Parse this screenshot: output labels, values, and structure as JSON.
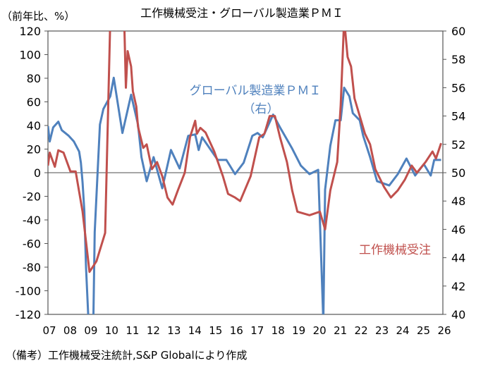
{
  "chart_data": {
    "type": "line",
    "title": "工作機械受注・グローバル製造業ＰＭＩ",
    "ylabel_left": "（前年比、%）",
    "footnote": "（備考）工作機械受注統計,S&P Globalにより作成",
    "x_ticks": [
      "07",
      "08",
      "09",
      "10",
      "11",
      "12",
      "13",
      "14",
      "15",
      "16",
      "17",
      "18",
      "19",
      "20",
      "21",
      "22",
      "23",
      "24",
      "25",
      "26"
    ],
    "xlim": [
      "2007-01",
      "2026-01"
    ],
    "y_left": {
      "range": [
        -120,
        120
      ],
      "ticks": [
        -120,
        -100,
        -80,
        -60,
        -40,
        -20,
        0,
        20,
        40,
        60,
        80,
        100,
        120
      ]
    },
    "y_right": {
      "range": [
        40,
        60
      ],
      "ticks": [
        40,
        42,
        44,
        46,
        48,
        50,
        52,
        54,
        56,
        58,
        60
      ]
    },
    "grid": false,
    "series": [
      {
        "name": "工作機械受注",
        "axis": "left",
        "color": "#C0504D",
        "label_lines": [
          "工作機械受注"
        ],
        "points": [
          [
            "2007-01",
            6
          ],
          [
            "2007-02",
            17
          ],
          [
            "2007-05",
            5
          ],
          [
            "2007-07",
            19
          ],
          [
            "2007-10",
            17
          ],
          [
            "2008-02",
            1
          ],
          [
            "2008-05",
            1
          ],
          [
            "2008-09",
            -33
          ],
          [
            "2009-01",
            -84
          ],
          [
            "2009-05",
            -75
          ],
          [
            "2009-10",
            -51
          ],
          [
            "2010-01",
            130
          ],
          [
            "2010-09",
            130
          ],
          [
            "2010-10",
            72
          ],
          [
            "2010-11",
            103
          ],
          [
            "2011-01",
            90
          ],
          [
            "2011-02",
            69
          ],
          [
            "2011-04",
            56
          ],
          [
            "2011-05",
            39
          ],
          [
            "2011-08",
            21
          ],
          [
            "2011-10",
            24
          ],
          [
            "2012-01",
            3
          ],
          [
            "2012-04",
            9
          ],
          [
            "2012-07",
            -3
          ],
          [
            "2012-10",
            -21
          ],
          [
            "2013-01",
            -27
          ],
          [
            "2013-04",
            -15
          ],
          [
            "2013-08",
            0
          ],
          [
            "2013-11",
            30
          ],
          [
            "2014-02",
            44
          ],
          [
            "2014-03",
            33
          ],
          [
            "2014-05",
            38
          ],
          [
            "2014-08",
            34
          ],
          [
            "2015-01",
            18
          ],
          [
            "2015-06",
            -3
          ],
          [
            "2015-09",
            -18
          ],
          [
            "2016-01",
            -21
          ],
          [
            "2016-04",
            -24
          ],
          [
            "2016-10",
            -3
          ],
          [
            "2017-03",
            30
          ],
          [
            "2017-06",
            33
          ],
          [
            "2017-09",
            48
          ],
          [
            "2017-12",
            48
          ],
          [
            "2018-03",
            30
          ],
          [
            "2018-07",
            9
          ],
          [
            "2018-10",
            -15
          ],
          [
            "2019-01",
            -33
          ],
          [
            "2019-08",
            -36
          ],
          [
            "2020-02",
            -33
          ],
          [
            "2020-05",
            -48
          ],
          [
            "2020-08",
            -15
          ],
          [
            "2020-12",
            9
          ],
          [
            "2021-02",
            57
          ],
          [
            "2021-04",
            130
          ],
          [
            "2021-06",
            98
          ],
          [
            "2021-08",
            90
          ],
          [
            "2021-10",
            63
          ],
          [
            "2022-01",
            48
          ],
          [
            "2022-04",
            33
          ],
          [
            "2022-07",
            24
          ],
          [
            "2022-10",
            3
          ],
          [
            "2023-03",
            -12
          ],
          [
            "2023-07",
            -21
          ],
          [
            "2023-11",
            -15
          ],
          [
            "2024-03",
            -6
          ],
          [
            "2024-07",
            6
          ],
          [
            "2024-10",
            0
          ],
          [
            "2025-03",
            9
          ],
          [
            "2025-07",
            18
          ],
          [
            "2025-09",
            12
          ],
          [
            "2025-12",
            25
          ]
        ]
      },
      {
        "name": "グローバル製造業ＰＭＩ",
        "axis": "right",
        "color": "#4F81BD",
        "label_lines": [
          "グローバル製造業ＰＭＩ",
          "（右）"
        ],
        "points": [
          [
            "2007-01",
            53.3
          ],
          [
            "2007-02",
            52.2
          ],
          [
            "2007-04",
            53.2
          ],
          [
            "2007-07",
            53.6
          ],
          [
            "2007-09",
            53.0
          ],
          [
            "2008-01",
            52.6
          ],
          [
            "2008-04",
            52.2
          ],
          [
            "2008-07",
            51.5
          ],
          [
            "2008-08",
            50.7
          ],
          [
            "2008-09",
            49.3
          ],
          [
            "2008-10",
            47.3
          ],
          [
            "2008-11",
            43.3
          ],
          [
            "2009-01",
            38
          ],
          [
            "2009-03",
            38
          ],
          [
            "2009-04",
            45.8
          ],
          [
            "2009-07",
            53.4
          ],
          [
            "2009-09",
            54.5
          ],
          [
            "2010-01",
            55.4
          ],
          [
            "2010-03",
            56.7
          ],
          [
            "2010-08",
            52.8
          ],
          [
            "2011-01",
            55.5
          ],
          [
            "2011-05",
            53.4
          ],
          [
            "2011-07",
            51.1
          ],
          [
            "2011-10",
            49.4
          ],
          [
            "2012-02",
            51.1
          ],
          [
            "2012-07",
            48.9
          ],
          [
            "2012-12",
            51.6
          ],
          [
            "2013-05",
            50.3
          ],
          [
            "2013-10",
            52.6
          ],
          [
            "2014-02",
            52.7
          ],
          [
            "2014-04",
            51.6
          ],
          [
            "2014-06",
            52.5
          ],
          [
            "2015-03",
            50.9
          ],
          [
            "2015-08",
            50.9
          ],
          [
            "2016-01",
            49.9
          ],
          [
            "2016-06",
            50.7
          ],
          [
            "2016-11",
            52.6
          ],
          [
            "2017-02",
            52.8
          ],
          [
            "2017-05",
            52.5
          ],
          [
            "2017-11",
            54.1
          ],
          [
            "2018-03",
            53.2
          ],
          [
            "2018-10",
            51.7
          ],
          [
            "2019-03",
            50.5
          ],
          [
            "2019-08",
            49.9
          ],
          [
            "2020-01",
            50.2
          ],
          [
            "2020-04",
            39.5
          ],
          [
            "2020-05",
            48.8
          ],
          [
            "2020-08",
            51.9
          ],
          [
            "2020-11",
            53.7
          ],
          [
            "2021-02",
            53.7
          ],
          [
            "2021-04",
            56.0
          ],
          [
            "2021-07",
            55.4
          ],
          [
            "2021-09",
            54.2
          ],
          [
            "2022-01",
            53.7
          ],
          [
            "2022-03",
            52.6
          ],
          [
            "2022-07",
            51.1
          ],
          [
            "2022-11",
            49.4
          ],
          [
            "2023-06",
            49.1
          ],
          [
            "2023-11",
            49.9
          ],
          [
            "2024-04",
            51.0
          ],
          [
            "2024-09",
            49.8
          ],
          [
            "2025-02",
            50.6
          ],
          [
            "2025-06",
            49.8
          ],
          [
            "2025-08",
            50.9
          ],
          [
            "2025-12",
            50.9
          ]
        ]
      }
    ]
  }
}
